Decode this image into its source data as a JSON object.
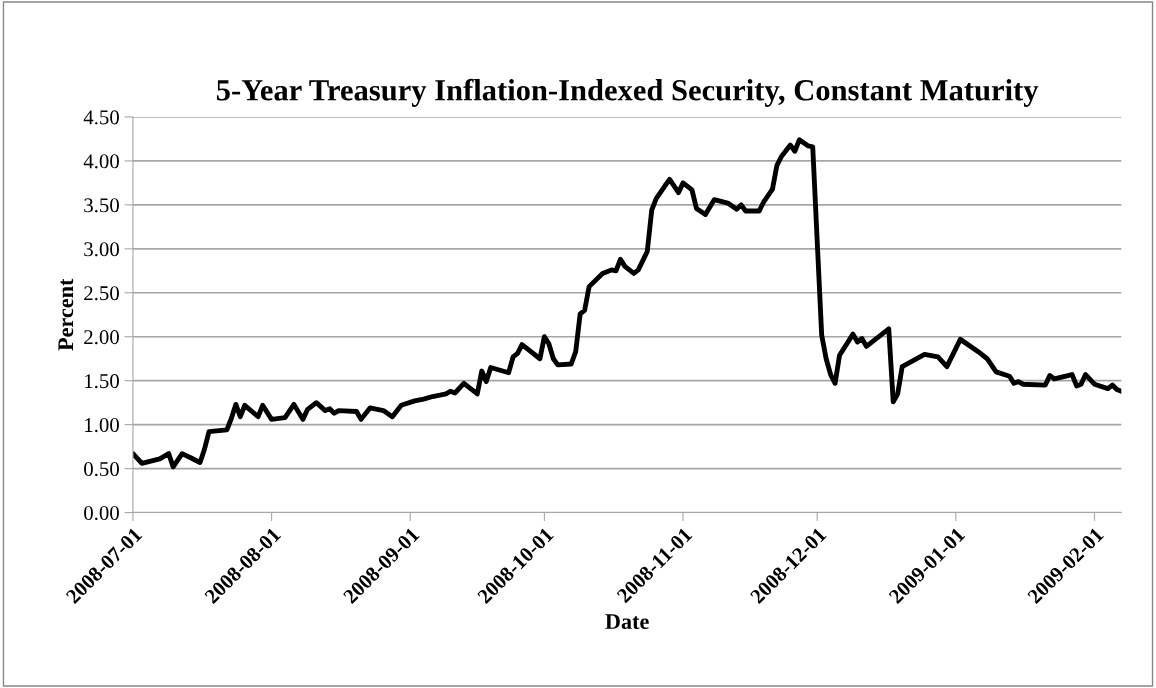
{
  "chart_data": {
    "type": "line",
    "title": "5-Year Treasury Inflation-Indexed Security, Constant Maturity",
    "xlabel": "Date",
    "ylabel": "Percent",
    "x": [
      "2008-07-01",
      "2008-07-03",
      "2008-07-07",
      "2008-07-09",
      "2008-07-10",
      "2008-07-12",
      "2008-07-14",
      "2008-07-16",
      "2008-07-17",
      "2008-07-18",
      "2008-07-22",
      "2008-07-23",
      "2008-07-24",
      "2008-07-25",
      "2008-07-26",
      "2008-07-29",
      "2008-07-30",
      "2008-08-01",
      "2008-08-04",
      "2008-08-06",
      "2008-08-08",
      "2008-08-09",
      "2008-08-11",
      "2008-08-13",
      "2008-08-14",
      "2008-08-15",
      "2008-08-16",
      "2008-08-20",
      "2008-08-21",
      "2008-08-23",
      "2008-08-26",
      "2008-08-28",
      "2008-08-30",
      "2008-09-02",
      "2008-09-04",
      "2008-09-06",
      "2008-09-09",
      "2008-09-10",
      "2008-09-11",
      "2008-09-13",
      "2008-09-16",
      "2008-09-17",
      "2008-09-18",
      "2008-09-19",
      "2008-09-23",
      "2008-09-24",
      "2008-09-25",
      "2008-09-26",
      "2008-09-30",
      "2008-10-01",
      "2008-10-02",
      "2008-10-03",
      "2008-10-04",
      "2008-10-07",
      "2008-10-08",
      "2008-10-09",
      "2008-10-10",
      "2008-10-11",
      "2008-10-14",
      "2008-10-16",
      "2008-10-17",
      "2008-10-18",
      "2008-10-19",
      "2008-10-21",
      "2008-10-22",
      "2008-10-24",
      "2008-10-25",
      "2008-10-26",
      "2008-10-28",
      "2008-10-29",
      "2008-10-31",
      "2008-11-01",
      "2008-11-03",
      "2008-11-04",
      "2008-11-06",
      "2008-11-08",
      "2008-11-11",
      "2008-11-13",
      "2008-11-14",
      "2008-11-15",
      "2008-11-18",
      "2008-11-19",
      "2008-11-21",
      "2008-11-22",
      "2008-11-23",
      "2008-11-25",
      "2008-11-26",
      "2008-11-27",
      "2008-11-29",
      "2008-11-30",
      "2008-12-02",
      "2008-12-03",
      "2008-12-04",
      "2008-12-05",
      "2008-12-06",
      "2008-12-09",
      "2008-12-10",
      "2008-12-11",
      "2008-12-12",
      "2008-12-17",
      "2008-12-18",
      "2008-12-19",
      "2008-12-20",
      "2008-12-25",
      "2008-12-28",
      "2008-12-30",
      "2009-01-02",
      "2009-01-06",
      "2009-01-08",
      "2009-01-10",
      "2009-01-13",
      "2009-01-14",
      "2009-01-15",
      "2009-01-16",
      "2009-01-21",
      "2009-01-22",
      "2009-01-23",
      "2009-01-27",
      "2009-01-28",
      "2009-01-29",
      "2009-01-30",
      "2009-02-01",
      "2009-02-04",
      "2009-02-05",
      "2009-02-06",
      "2009-02-07"
    ],
    "series": [
      {
        "color": "#000000",
        "values": [
          0.67,
          0.56,
          0.61,
          0.67,
          0.52,
          0.67,
          0.62,
          0.57,
          0.72,
          0.92,
          0.94,
          1.07,
          1.23,
          1.09,
          1.22,
          1.09,
          1.22,
          1.06,
          1.08,
          1.23,
          1.06,
          1.17,
          1.25,
          1.16,
          1.18,
          1.13,
          1.16,
          1.15,
          1.06,
          1.19,
          1.16,
          1.09,
          1.22,
          1.27,
          1.29,
          1.32,
          1.35,
          1.38,
          1.36,
          1.47,
          1.35,
          1.61,
          1.49,
          1.65,
          1.59,
          1.77,
          1.81,
          1.91,
          1.75,
          2.0,
          1.92,
          1.75,
          1.68,
          1.69,
          1.83,
          2.26,
          2.3,
          2.57,
          2.72,
          2.76,
          2.75,
          2.88,
          2.8,
          2.72,
          2.76,
          2.97,
          3.44,
          3.57,
          3.72,
          3.79,
          3.64,
          3.75,
          3.67,
          3.46,
          3.39,
          3.56,
          3.52,
          3.45,
          3.5,
          3.43,
          3.43,
          3.53,
          3.68,
          3.95,
          4.05,
          4.18,
          4.11,
          4.24,
          4.17,
          4.16,
          2.02,
          1.75,
          1.57,
          1.47,
          1.79,
          2.03,
          1.94,
          1.98,
          1.89,
          2.09,
          1.26,
          1.35,
          1.66,
          1.8,
          1.77,
          1.66,
          1.97,
          1.83,
          1.75,
          1.6,
          1.55,
          1.47,
          1.49,
          1.46,
          1.45,
          1.56,
          1.52,
          1.57,
          1.44,
          1.46,
          1.57,
          1.46,
          1.41,
          1.45,
          1.4,
          1.38
        ]
      }
    ],
    "xlim": [
      "2008-07-01",
      "2009-02-07"
    ],
    "xticks": [
      "2008-07-01",
      "2008-08-01",
      "2008-09-01",
      "2008-10-01",
      "2008-11-01",
      "2008-12-01",
      "2009-01-01",
      "2009-02-01"
    ],
    "ylim": [
      0,
      4.5
    ],
    "yticks": [
      {
        "value": 0,
        "label": "0.00"
      },
      {
        "value": 0.5,
        "label": "0.50"
      },
      {
        "value": 1,
        "label": "1.00"
      },
      {
        "value": 1.5,
        "label": "1.50"
      },
      {
        "value": 2,
        "label": "2.00"
      },
      {
        "value": 2.5,
        "label": "2.50"
      },
      {
        "value": 3,
        "label": "3.00"
      },
      {
        "value": 3.5,
        "label": "3.50"
      },
      {
        "value": 4,
        "label": "4.00"
      },
      {
        "value": 4.5,
        "label": "4.50"
      }
    ],
    "grid": "y",
    "marker": "none",
    "line_style": "solid"
  }
}
